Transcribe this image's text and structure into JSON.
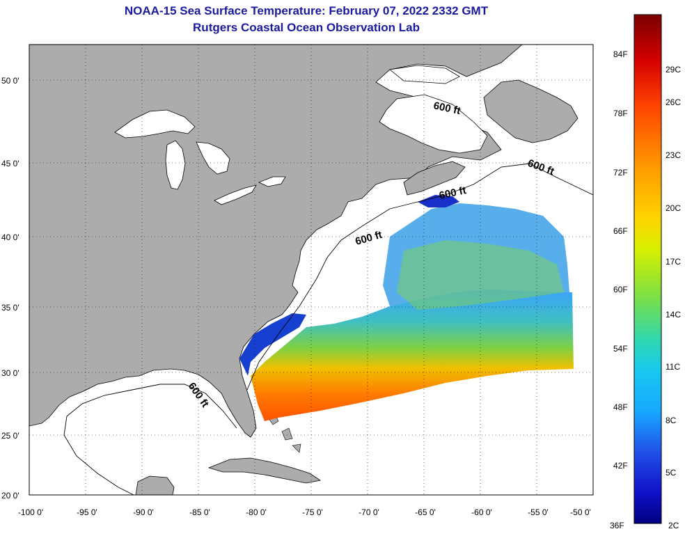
{
  "title": "NOAA-15 Sea Surface Temperature:  February 07, 2022 2332 GMT",
  "subtitle": "Rutgers Coastal Ocean Observation Lab",
  "map": {
    "lat_ticks": [
      "50 0'",
      "45 0'",
      "40 0'",
      "35 0'",
      "30 0'",
      "25 0'",
      "20 0'"
    ],
    "lon_ticks": [
      "-100 0'",
      "-95 0'",
      "-90 0'",
      "-85 0'",
      "-80 0'",
      "-75 0'",
      "-70 0'",
      "-65 0'",
      "-60 0'",
      "-55 0'",
      "-50 0'"
    ],
    "contour_labels": [
      "600 ft",
      "600 ft",
      "600 ft",
      "600 ft",
      "600 ft"
    ],
    "colors": {
      "land": "#acacac",
      "water": "#ffffff",
      "grid": "#000000"
    }
  },
  "colorbar": {
    "fahrenheit": [
      "84F",
      "78F",
      "72F",
      "66F",
      "60F",
      "54F",
      "48F",
      "42F",
      "36F"
    ],
    "celsius": [
      "29C",
      "26C",
      "23C",
      "20C",
      "17C",
      "14C",
      "11C",
      "8C",
      "5C",
      "2C"
    ],
    "colors_top_to_bottom": [
      "#7a0000",
      "#d40000",
      "#ff4400",
      "#ff9a00",
      "#ffd400",
      "#d8f000",
      "#80e040",
      "#30d8b0",
      "#18a8ff",
      "#2050e8",
      "#1010c8",
      "#000080"
    ]
  }
}
